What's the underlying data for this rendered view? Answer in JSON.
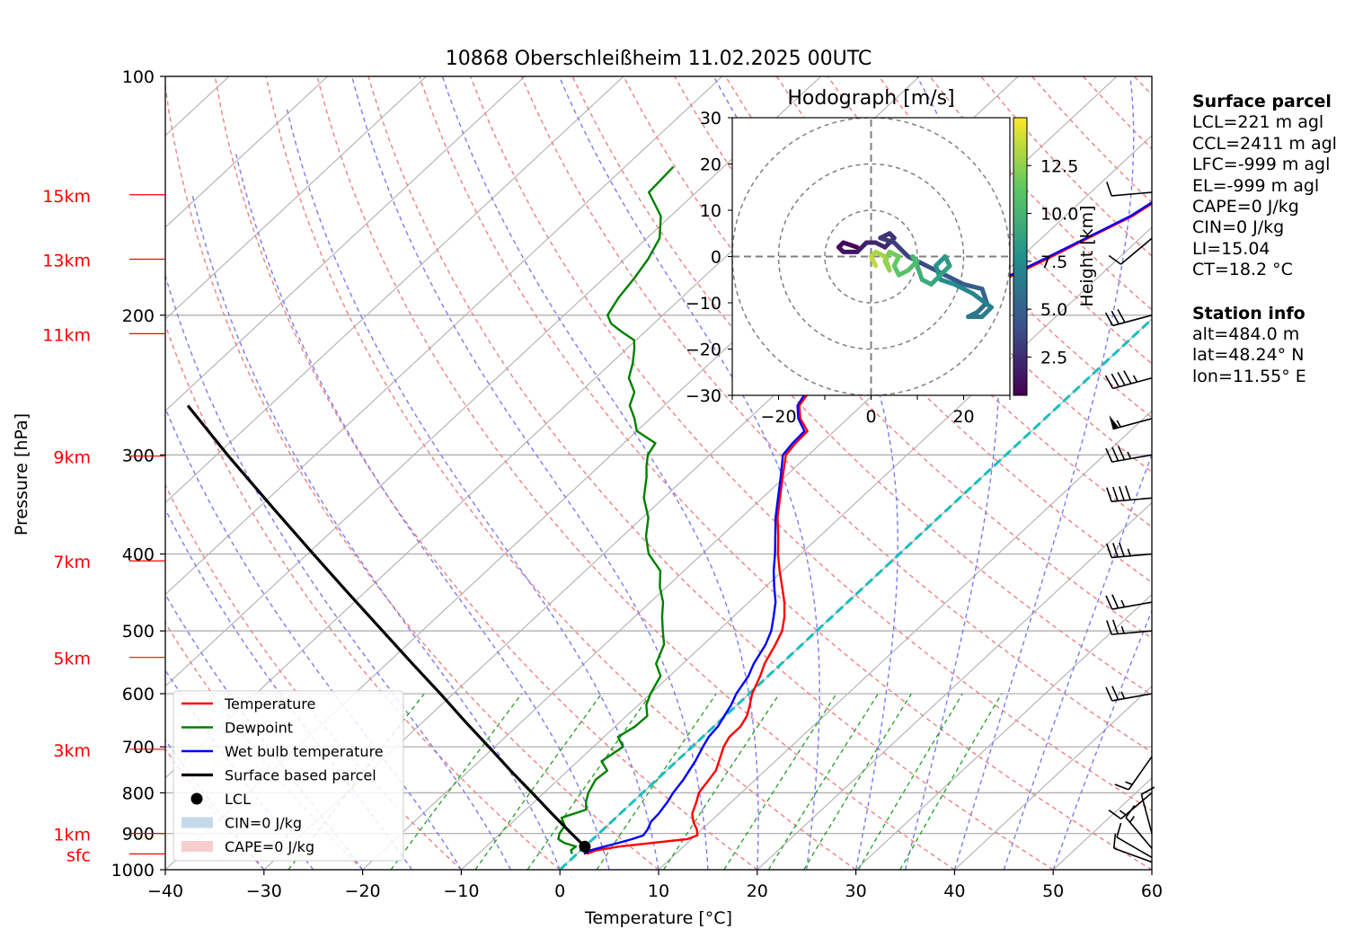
{
  "chart_data": {
    "type": "skew-t log-p sounding diagram",
    "title": "10868 Oberschleißheim 11.02.2025 00UTC",
    "xlabel": "Temperature [°C]",
    "ylabel": "Pressure [hPa]",
    "xlim": [
      -40,
      60
    ],
    "ylim_hpa": [
      1000,
      100
    ],
    "x_ticks": [
      -40,
      -30,
      -20,
      -10,
      0,
      10,
      20,
      30,
      40,
      50,
      60
    ],
    "x_tick_labels": [
      "−40",
      "−30",
      "−20",
      "−10",
      "0",
      "10",
      "20",
      "30",
      "40",
      "50",
      "60"
    ],
    "y_ticks": [
      100,
      200,
      300,
      400,
      500,
      600,
      700,
      800,
      900,
      1000
    ],
    "y_tick_labels": [
      "100",
      "200",
      "300",
      "400",
      "500",
      "600",
      "700",
      "800",
      "900",
      "1000"
    ],
    "height_labels": [
      {
        "label": "15km",
        "p": 141
      },
      {
        "label": "13km",
        "p": 170
      },
      {
        "label": "11km",
        "p": 211
      },
      {
        "label": "9km",
        "p": 301
      },
      {
        "label": "7km",
        "p": 408
      },
      {
        "label": "5km",
        "p": 540
      },
      {
        "label": "3km",
        "p": 705
      },
      {
        "label": "1km",
        "p": 900
      },
      {
        "label": "sfc",
        "p": 955
      }
    ],
    "colors": {
      "temperature": "#ff0000",
      "dewpoint": "#008000",
      "wetbulb": "#0000ff",
      "parcel": "#000000",
      "dry_adiabat": "#f08080",
      "moist_adiabat": "#7b7bf2",
      "mixing_ratio": "#22a022",
      "zero_isotherm": "#17bebe",
      "isotherm": "#b0b0b0"
    },
    "series": [
      {
        "name": "Temperature",
        "points": [
          [
            955,
            1.0
          ],
          [
            945,
            1.6
          ],
          [
            935,
            3.5
          ],
          [
            925,
            6.5
          ],
          [
            915,
            9.6
          ],
          [
            905,
            10.2
          ],
          [
            890,
            9.5
          ],
          [
            870,
            8.3
          ],
          [
            850,
            7.3
          ],
          [
            820,
            6.4
          ],
          [
            800,
            5.7
          ],
          [
            770,
            5.3
          ],
          [
            750,
            5.0
          ],
          [
            730,
            4.3
          ],
          [
            700,
            3.2
          ],
          [
            680,
            2.7
          ],
          [
            660,
            2.7
          ],
          [
            640,
            2.2
          ],
          [
            620,
            1.3
          ],
          [
            600,
            0.3
          ],
          [
            570,
            -0.8
          ],
          [
            550,
            -1.7
          ],
          [
            520,
            -2.7
          ],
          [
            500,
            -3.5
          ],
          [
            480,
            -4.8
          ],
          [
            460,
            -6.4
          ],
          [
            440,
            -8.3
          ],
          [
            420,
            -10.3
          ],
          [
            400,
            -12.3
          ],
          [
            380,
            -14.2
          ],
          [
            360,
            -16.3
          ],
          [
            340,
            -18.2
          ],
          [
            320,
            -20.2
          ],
          [
            300,
            -22.3
          ],
          [
            290,
            -22.6
          ],
          [
            280,
            -22.7
          ],
          [
            270,
            -24.8
          ],
          [
            260,
            -26.3
          ],
          [
            250,
            -26.8
          ],
          [
            240,
            -27.6
          ],
          [
            230,
            -28.7
          ],
          [
            220,
            -29.3
          ],
          [
            215,
            -28.1
          ],
          [
            210,
            -26.6
          ],
          [
            205,
            -25.5
          ],
          [
            200,
            -23.8
          ],
          [
            190,
            -21.5
          ],
          [
            180,
            -19.2
          ],
          [
            170,
            -17.2
          ],
          [
            160,
            -15.3
          ],
          [
            150,
            -13.2
          ],
          [
            140,
            -12.0
          ],
          [
            130,
            -10.0
          ]
        ]
      },
      {
        "name": "Dewpoint",
        "points": [
          [
            955,
            -0.5
          ],
          [
            945,
            -1.0
          ],
          [
            935,
            -0.9
          ],
          [
            925,
            -2.5
          ],
          [
            915,
            -3.5
          ],
          [
            900,
            -4.0
          ],
          [
            880,
            -4.3
          ],
          [
            860,
            -5.5
          ],
          [
            840,
            -3.9
          ],
          [
            820,
            -4.8
          ],
          [
            800,
            -5.5
          ],
          [
            770,
            -6.2
          ],
          [
            750,
            -6.0
          ],
          [
            730,
            -7.6
          ],
          [
            700,
            -7.0
          ],
          [
            680,
            -8.6
          ],
          [
            660,
            -8.0
          ],
          [
            640,
            -7.9
          ],
          [
            620,
            -9.2
          ],
          [
            600,
            -10.0
          ],
          [
            570,
            -10.9
          ],
          [
            550,
            -12.7
          ],
          [
            520,
            -14.0
          ],
          [
            500,
            -15.6
          ],
          [
            480,
            -17.2
          ],
          [
            460,
            -18.7
          ],
          [
            440,
            -20.7
          ],
          [
            420,
            -22.4
          ],
          [
            400,
            -25.4
          ],
          [
            380,
            -27.6
          ],
          [
            360,
            -29.4
          ],
          [
            340,
            -32.0
          ],
          [
            320,
            -34.0
          ],
          [
            310,
            -35.2
          ],
          [
            300,
            -36.3
          ],
          [
            290,
            -36.8
          ],
          [
            280,
            -40.0
          ],
          [
            270,
            -41.6
          ],
          [
            260,
            -43.5
          ],
          [
            250,
            -44.5
          ],
          [
            240,
            -46.6
          ],
          [
            230,
            -47.8
          ],
          [
            220,
            -49.3
          ],
          [
            215,
            -50.2
          ],
          [
            210,
            -52.3
          ],
          [
            205,
            -54.3
          ],
          [
            200,
            -55.6
          ],
          [
            190,
            -56.4
          ],
          [
            180,
            -56.9
          ],
          [
            170,
            -57.6
          ],
          [
            160,
            -58.7
          ],
          [
            150,
            -61.0
          ],
          [
            140,
            -64.8
          ],
          [
            130,
            -65.1
          ]
        ]
      },
      {
        "name": "Wet bulb temperature",
        "points": [
          [
            955,
            0.7
          ],
          [
            945,
            1.0
          ],
          [
            935,
            2.0
          ],
          [
            925,
            3.0
          ],
          [
            915,
            4.0
          ],
          [
            905,
            4.7
          ],
          [
            890,
            4.5
          ],
          [
            870,
            4.0
          ],
          [
            850,
            3.9
          ],
          [
            820,
            3.5
          ],
          [
            800,
            3.1
          ],
          [
            770,
            2.7
          ],
          [
            750,
            2.3
          ],
          [
            730,
            1.9
          ],
          [
            700,
            1.1
          ],
          [
            680,
            0.6
          ],
          [
            660,
            0.4
          ],
          [
            640,
            -0.1
          ],
          [
            620,
            -0.6
          ],
          [
            600,
            -1.3
          ],
          [
            570,
            -2.0
          ],
          [
            550,
            -2.8
          ],
          [
            520,
            -3.7
          ],
          [
            500,
            -4.6
          ],
          [
            480,
            -5.9
          ],
          [
            460,
            -7.3
          ],
          [
            440,
            -9.1
          ],
          [
            420,
            -10.9
          ],
          [
            400,
            -12.6
          ],
          [
            380,
            -14.5
          ],
          [
            360,
            -16.5
          ],
          [
            340,
            -18.4
          ],
          [
            320,
            -20.4
          ],
          [
            300,
            -22.6
          ],
          [
            290,
            -22.9
          ],
          [
            280,
            -23.0
          ],
          [
            270,
            -25.0
          ],
          [
            260,
            -26.5
          ],
          [
            250,
            -27.1
          ],
          [
            240,
            -27.9
          ],
          [
            230,
            -29.0
          ],
          [
            220,
            -29.6
          ],
          [
            215,
            -28.4
          ],
          [
            210,
            -26.9
          ],
          [
            205,
            -25.8
          ],
          [
            200,
            -24.1
          ],
          [
            190,
            -21.8
          ],
          [
            180,
            -19.5
          ],
          [
            170,
            -17.5
          ],
          [
            160,
            -15.5
          ],
          [
            150,
            -13.4
          ],
          [
            140,
            -12.2
          ],
          [
            130,
            -10.2
          ]
        ]
      },
      {
        "name": "Surface based parcel",
        "points": [
          [
            955,
            1.0
          ],
          [
            935,
            0.0
          ],
          [
            900,
            -2.8
          ],
          [
            850,
            -6.9
          ],
          [
            800,
            -11.2
          ],
          [
            750,
            -15.8
          ],
          [
            700,
            -20.6
          ],
          [
            650,
            -25.8
          ],
          [
            600,
            -31.3
          ],
          [
            550,
            -37.4
          ],
          [
            500,
            -44.0
          ],
          [
            450,
            -51.3
          ],
          [
            400,
            -59.4
          ],
          [
            350,
            -68.5
          ],
          [
            300,
            -78.9
          ],
          [
            260,
            -88.3
          ]
        ]
      }
    ],
    "lcl": {
      "p": 935,
      "t": 0.0
    },
    "hodograph": {
      "title": "Hodograph [m/s]",
      "xlim": [
        -30,
        30
      ],
      "ylim": [
        -30,
        30
      ],
      "ticks": [
        -30,
        -20,
        -10,
        0,
        10,
        20,
        30
      ],
      "x_tick_labels": [
        "−20",
        "0",
        "20"
      ],
      "y_tick_labels": [
        "30",
        "20",
        "10",
        "0",
        "−10",
        "−20",
        "−30"
      ],
      "rings": [
        10,
        20,
        30
      ],
      "colorbar_label": "Height [km]",
      "colorbar_range_km": [
        0.5,
        15
      ],
      "colorbar_tick_labels": [
        "2.5",
        "5.0",
        "7.5",
        "10.0",
        "12.5"
      ],
      "points": [
        [
          -3,
          2,
          0.5
        ],
        [
          -6,
          3,
          0.8
        ],
        [
          -7,
          2,
          1.1
        ],
        [
          -6,
          1,
          1.4
        ],
        [
          -3,
          1,
          1.7
        ],
        [
          -1,
          3,
          2.0
        ],
        [
          1,
          3,
          2.2
        ],
        [
          3,
          2,
          2.4
        ],
        [
          5,
          4,
          2.6
        ],
        [
          4,
          5,
          2.8
        ],
        [
          2,
          4,
          3.0
        ],
        [
          5,
          3,
          3.3
        ],
        [
          8,
          0,
          3.6
        ],
        [
          12,
          -2,
          4.0
        ],
        [
          16,
          -4,
          4.4
        ],
        [
          20,
          -6,
          4.8
        ],
        [
          24,
          -7,
          5.2
        ],
        [
          25,
          -10,
          5.6
        ],
        [
          23,
          -12,
          6.0
        ],
        [
          21,
          -13,
          6.3
        ],
        [
          24,
          -13,
          6.6
        ],
        [
          26,
          -11,
          6.9
        ],
        [
          22,
          -8,
          7.2
        ],
        [
          18,
          -6,
          7.5
        ],
        [
          15,
          -5,
          7.8
        ],
        [
          14,
          -2,
          8.1
        ],
        [
          16,
          0,
          8.4
        ],
        [
          17,
          -2,
          8.7
        ],
        [
          15,
          -4,
          9.0
        ],
        [
          13,
          -6,
          9.3
        ],
        [
          11,
          -5,
          9.6
        ],
        [
          10,
          -2,
          9.9
        ],
        [
          9,
          0,
          10.2
        ],
        [
          10,
          -1,
          10.5
        ],
        [
          8,
          -3,
          10.8
        ],
        [
          6,
          -4,
          11.1
        ],
        [
          5,
          -2,
          11.4
        ],
        [
          6,
          0,
          11.7
        ],
        [
          4,
          1,
          12.0
        ],
        [
          3,
          -1,
          12.3
        ],
        [
          4,
          -3,
          12.6
        ],
        [
          3,
          0,
          12.9
        ],
        [
          1,
          1,
          13.2
        ],
        [
          0,
          0,
          13.6
        ],
        [
          1,
          -2,
          14.0
        ]
      ]
    },
    "wind_barbs": [
      {
        "p": 978,
        "speed_kt": 10,
        "dir": 290
      },
      {
        "p": 965,
        "speed_kt": 10,
        "dir": 300
      },
      {
        "p": 940,
        "speed_kt": 15,
        "dir": 320
      },
      {
        "p": 900,
        "speed_kt": 10,
        "dir": 345
      },
      {
        "p": 800,
        "speed_kt": 15,
        "dir": 230
      },
      {
        "p": 720,
        "speed_kt": 15,
        "dir": 215
      },
      {
        "p": 600,
        "speed_kt": 25,
        "dir": 260
      },
      {
        "p": 500,
        "speed_kt": 25,
        "dir": 265
      },
      {
        "p": 460,
        "speed_kt": 25,
        "dir": 260
      },
      {
        "p": 400,
        "speed_kt": 35,
        "dir": 265
      },
      {
        "p": 340,
        "speed_kt": 40,
        "dir": 265
      },
      {
        "p": 300,
        "speed_kt": 35,
        "dir": 260
      },
      {
        "p": 270,
        "speed_kt": 55,
        "dir": 255
      },
      {
        "p": 240,
        "speed_kt": 45,
        "dir": 255
      },
      {
        "p": 200,
        "speed_kt": 30,
        "dir": 255
      },
      {
        "p": 160,
        "speed_kt": 10,
        "dir": 230
      },
      {
        "p": 140,
        "speed_kt": 10,
        "dir": 265
      }
    ],
    "legend": {
      "position": "lower-left",
      "entries": [
        {
          "label": "Temperature",
          "kind": "line",
          "color": "#ff0000"
        },
        {
          "label": "Dewpoint",
          "kind": "line",
          "color": "#008000"
        },
        {
          "label": "Wet bulb temperature",
          "kind": "line",
          "color": "#0000ff"
        },
        {
          "label": "Surface based parcel",
          "kind": "line",
          "color": "#000000"
        },
        {
          "label": "LCL",
          "kind": "dot",
          "color": "#000000"
        },
        {
          "label": "CIN=0 J/kg",
          "kind": "patch",
          "color": "#c6d9ea"
        },
        {
          "label": "CAPE=0 J/kg",
          "kind": "patch",
          "color": "#f7cdcd"
        }
      ]
    }
  },
  "info": {
    "surface_header": "Surface parcel",
    "surface_lines": [
      "LCL=221 m agl",
      "CCL=2411 m agl",
      "LFC=-999 m agl",
      "EL=-999 m agl",
      "CAPE=0 J/kg",
      "CIN=0 J/kg",
      "LI=15.04",
      "CT=18.2 °C"
    ],
    "station_header": "Station info",
    "station_lines": [
      "alt=484.0 m",
      "lat=48.24° N",
      "lon=11.55° E"
    ]
  }
}
